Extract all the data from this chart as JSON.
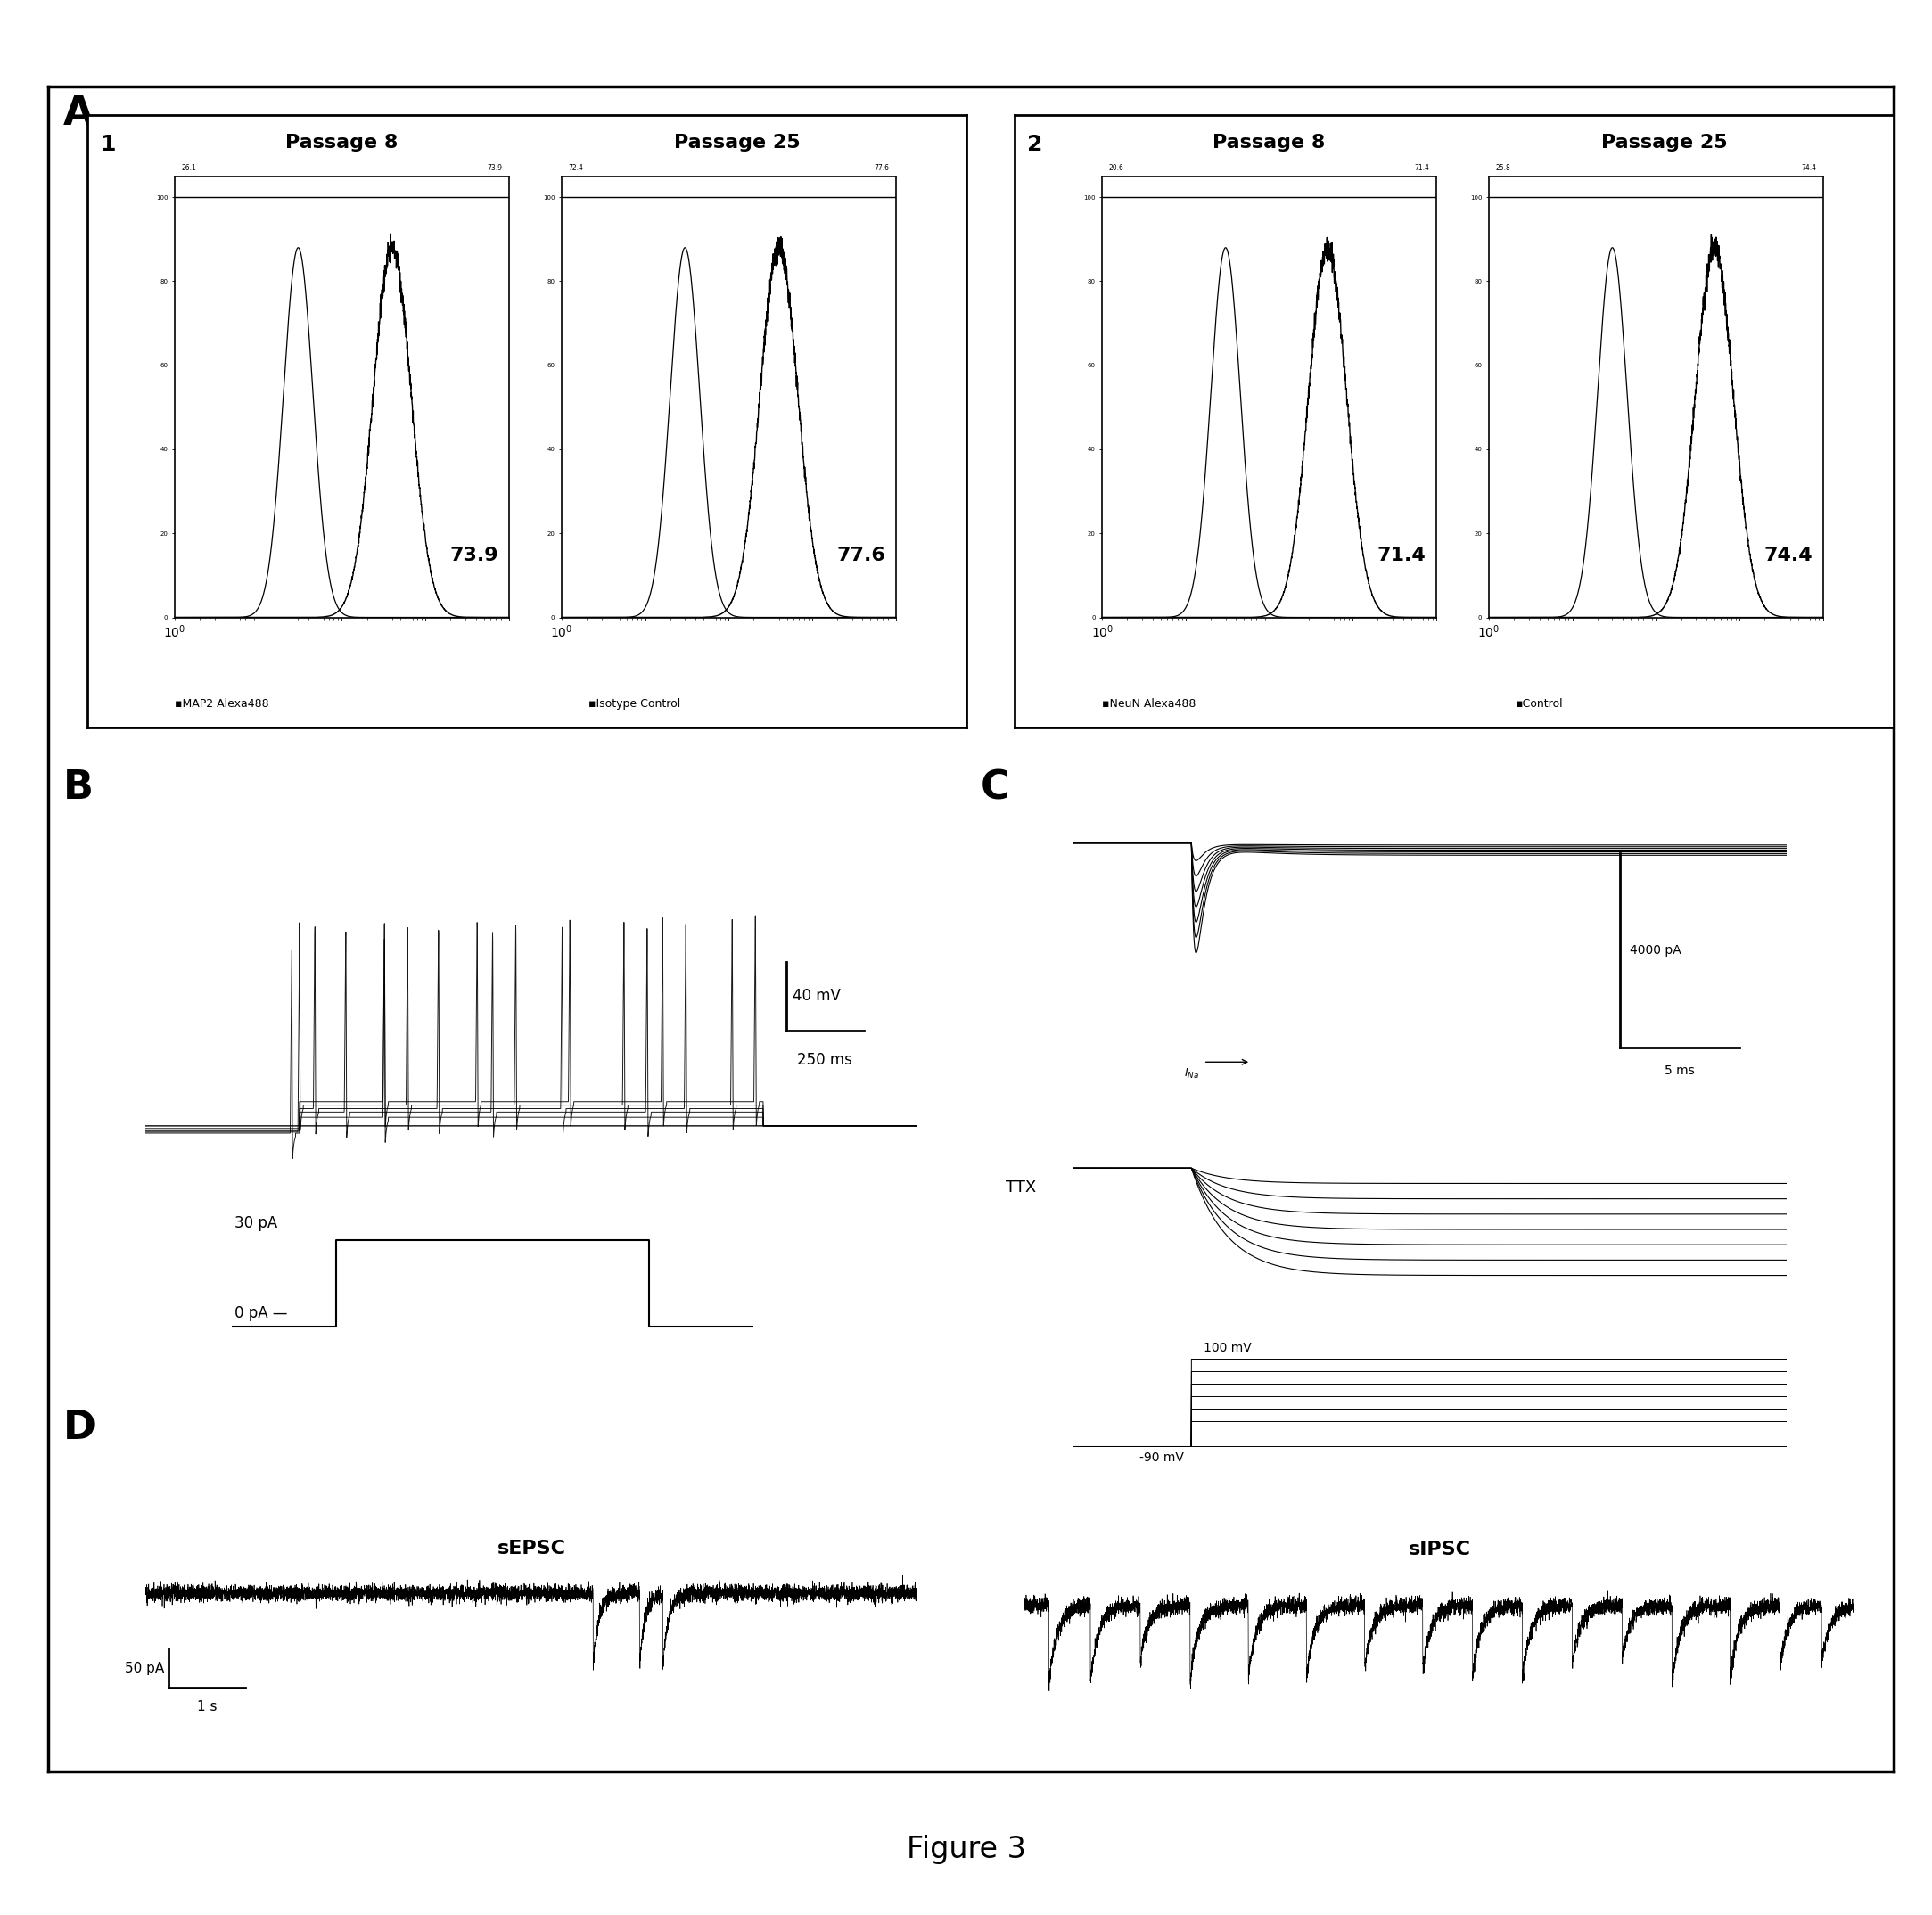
{
  "figure_title": "Figure 3",
  "panel_A_label": "A",
  "panel_B_label": "B",
  "panel_C_label": "C",
  "panel_D_label": "D",
  "panel1_label": "1",
  "panel2_label": "2",
  "panel1_title_left": "Passage 8",
  "panel1_title_right": "Passage 25",
  "panel2_title_left": "Passage 8",
  "panel2_title_right": "Passage 25",
  "panel1_value_left": "73.9",
  "panel1_value_right": "77.6",
  "panel2_value_left": "71.4",
  "panel2_value_right": "74.4",
  "panel1_small_left": "26.1",
  "panel1_small_right": "72.4",
  "panel2_small_left": "20.6",
  "panel2_small_right": "25.8",
  "panel1_top_left_vals": "26.1    3       73.9",
  "panel1_top_right_vals": "72.4    3       77.6",
  "panel2_top_left_vals": "20.6    3       71.4",
  "panel2_top_right_vals": "25.8    3       74.4",
  "panel1_legend1": "MAP2 Alexa488",
  "panel1_legend2": "Isotype Control",
  "panel2_legend1": "NeuN Alexa488",
  "panel2_legend2": "Control",
  "scale_B_voltage": "40 mV",
  "scale_B_time": "250 ms",
  "scale_B_current_high": "30 pA",
  "scale_B_current_low": "0 pA",
  "scale_C_top_current": "4000 pA",
  "scale_C_top_time": "5 ms",
  "scale_C_label_na": "INa",
  "scale_C_TTX": "TTX",
  "scale_C_volt_high": "100 mV",
  "scale_C_volt_low": "-90 mV",
  "label_D_left": "sEPSC",
  "label_D_right": "sIPSC",
  "scale_D_current": "50 pA",
  "scale_D_time": "1 s",
  "bg_color": "#ffffff",
  "trace_color": "#000000"
}
